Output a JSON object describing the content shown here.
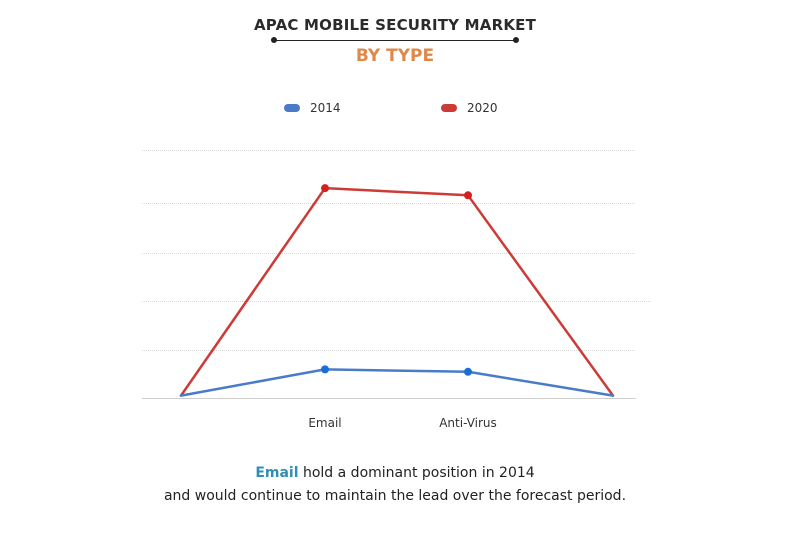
{
  "title": "APAC MOBILE SECURITY MARKET",
  "subtitle": "BY TYPE",
  "colors": {
    "accent_subtitle": "#e0874a",
    "highlight_text": "#2f8fb5",
    "series_2014": "#4a7bc8",
    "series_2020": "#cc3b36",
    "grid": "#d9d9d9"
  },
  "chart_data": {
    "type": "line",
    "categories": [
      "",
      "Email",
      "Anti-Virus",
      ""
    ],
    "series": [
      {
        "name": "2014",
        "values": [
          0.5,
          6,
          5.5,
          0.5
        ],
        "color": "#4a7bc8"
      },
      {
        "name": "2020",
        "values": [
          0.5,
          44,
          42.5,
          0.5
        ],
        "color": "#cc3b36"
      }
    ],
    "ylim": [
      0,
      52
    ],
    "grid": true,
    "legend_position": "top-center",
    "xlabel": "",
    "ylabel": ""
  },
  "caption": {
    "highlight": "Email",
    "line1_rest": " hold a dominant position in 2014",
    "line2": "and would continue to maintain the lead over the forecast period."
  }
}
